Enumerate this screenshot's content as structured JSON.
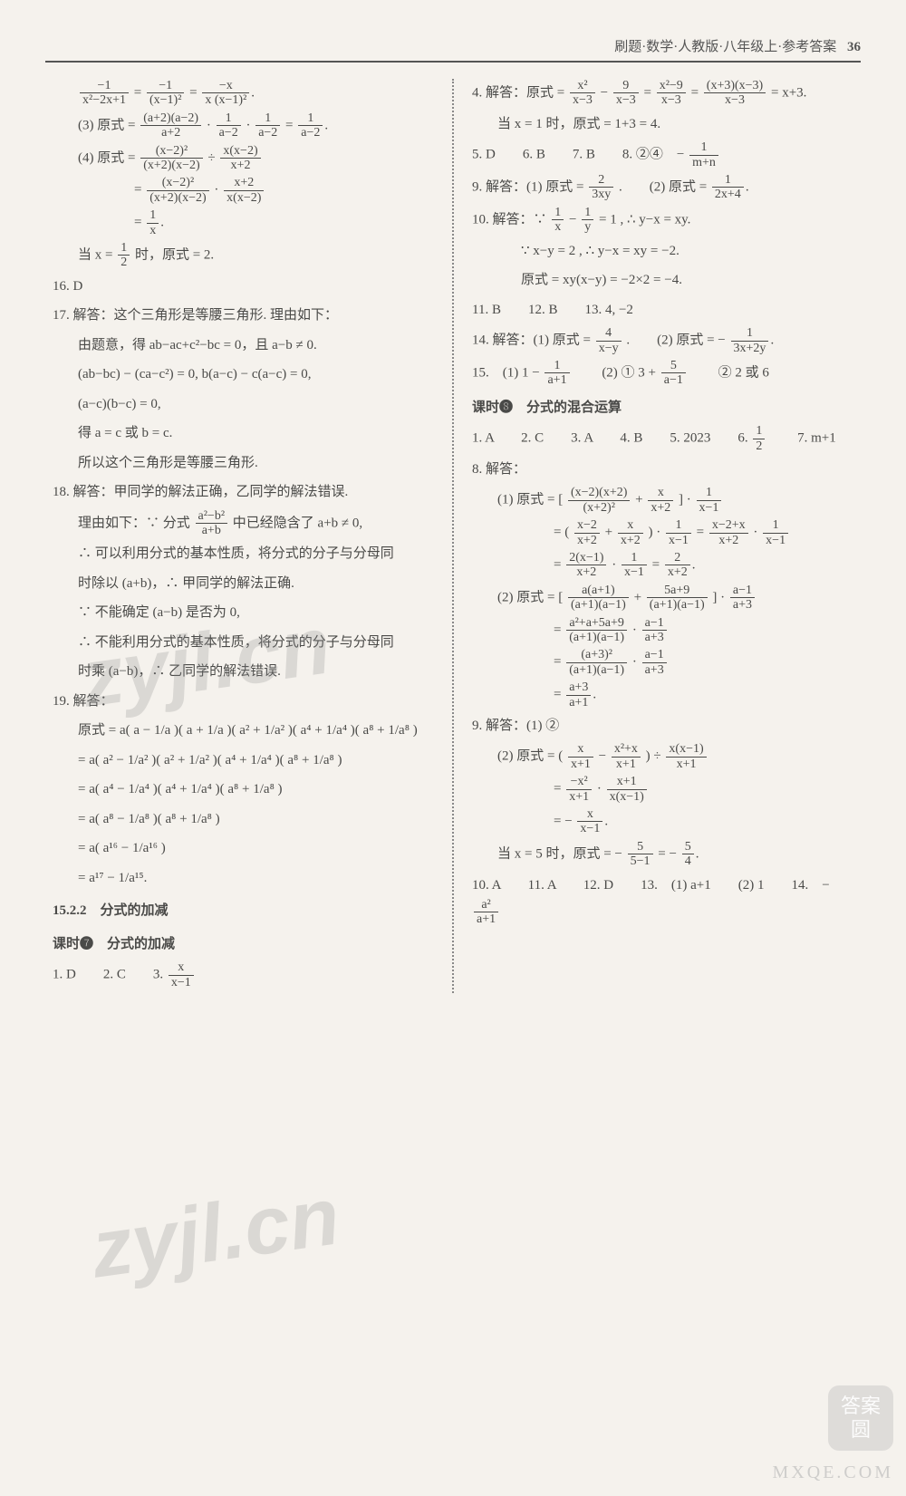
{
  "header": {
    "breadcrumb": "刷题·数学·人教版·八年级上·参考答案",
    "page_number": "36"
  },
  "watermarks": {
    "wm1": "zyjl.cn",
    "wm2": "zyjl.cn",
    "badge_top": "答案",
    "badge_bot": "圆",
    "site": "MXQE.COM"
  },
  "left": {
    "eq1_lhs_n": "−1",
    "eq1_lhs_d": "x²−2x+1",
    "eq1_m_n": "−1",
    "eq1_m_d": "(x−1)²",
    "eq1_r_n": "−x",
    "eq1_r_d": "x (x−1)²",
    "p3_label": "(3) 原式 =",
    "p3a_n": "(a+2)(a−2)",
    "p3a_d": "a+2",
    "p3b_n": "1",
    "p3b_d": "a−2",
    "p3c_n": "1",
    "p3c_d": "a−2",
    "p3r_n": "1",
    "p3r_d": "a−2",
    "p4_label": "(4) 原式 =",
    "p4a_n": "(x−2)²",
    "p4a_d": "(x+2)(x−2)",
    "p4b_n": "x(x−2)",
    "p4b_d": "x+2",
    "p4c_n": "(x−2)²",
    "p4c_d": "(x+2)(x−2)",
    "p4d_n": "x+2",
    "p4d_d": "x(x−2)",
    "p4e_n": "1",
    "p4e_d": "x",
    "p4_when1": "当 x = ",
    "p4_half_n": "1",
    "p4_half_d": "2",
    "p4_when2": " 时，原式 = 2.",
    "q16": "16.  D",
    "q17_head": "17.  解答：这个三角形是等腰三角形. 理由如下：",
    "q17_l1": "由题意，得 ab−ac+c²−bc = 0，且 a−b ≠ 0.",
    "q17_l2": "(ab−bc) − (ca−c²) = 0, b(a−c) − c(a−c) = 0,",
    "q17_l3": "(a−c)(b−c) = 0,",
    "q17_l4": "得 a = c 或 b = c.",
    "q17_l5": "所以这个三角形是等腰三角形.",
    "q18_head": "18.  解答：甲同学的解法正确，乙同学的解法错误.",
    "q18_l1a": "理由如下：∵ 分式",
    "q18_fr_n": "a²−b²",
    "q18_fr_d": "a+b",
    "q18_l1b": "中已经隐含了  a+b ≠ 0,",
    "q18_l2": "∴ 可以利用分式的基本性质，将分式的分子与分母同",
    "q18_l3": "时除以 (a+b)，∴ 甲同学的解法正确.",
    "q18_l4": "∵ 不能确定 (a−b) 是否为 0,",
    "q18_l5": "∴ 不能利用分式的基本性质，将分式的分子与分母同",
    "q18_l6": "时乘 (a−b)，∴ 乙同学的解法错误.",
    "q19_head": "19.  解答：",
    "q19_l1": "原式 = a( a − 1/a )( a + 1/a )( a² + 1/a² )( a⁴ + 1/a⁴ )( a⁸ + 1/a⁸ )",
    "q19_l2": "= a( a² − 1/a² )( a² + 1/a² )( a⁴ + 1/a⁴ )( a⁸ + 1/a⁸ )",
    "q19_l3": "= a( a⁴ − 1/a⁴ )( a⁴ + 1/a⁴ )( a⁸ + 1/a⁸ )",
    "q19_l4": "= a( a⁸ − 1/a⁸ )( a⁸ + 1/a⁸ )",
    "q19_l5": "= a( a¹⁶ − 1/a¹⁶ )",
    "q19_l6": "= a¹⁷ − 1/a¹⁵.",
    "sec_15_2_2": "15.2.2　分式的加减",
    "lesson7": "课时❼　分式的加减",
    "row7_12": "1.  D　　2.  C　　3.",
    "row7_3_n": "x",
    "row7_3_d": "x−1"
  },
  "right": {
    "q4_head": "4.  解答：原式 =",
    "q4a_n": "x²",
    "q4a_d": "x−3",
    "q4b_n": "9",
    "q4b_d": "x−3",
    "q4c_n": "x²−9",
    "q4c_d": "x−3",
    "q4d_n": "(x+3)(x−3)",
    "q4d_d": "x−3",
    "q4_tail": " = x+3.",
    "q4_when": "当 x = 1 时，原式 = 1+3 = 4.",
    "row5_8a": "5.  D　　6.  B　　7.  B　　8.  ②④　−",
    "row5_8_n": "1",
    "row5_8_d": "m+n",
    "q9_head": "9.  解答：(1) 原式 =",
    "q9a_n": "2",
    "q9a_d": "3xy",
    "q9_mid": ".　　(2) 原式 =",
    "q9b_n": "1",
    "q9b_d": "2x+4",
    "q10_head": "10.  解答：∵",
    "q10_a_n": "1",
    "q10_a_d": "x",
    "q10_b_n": "1",
    "q10_b_d": "y",
    "q10_tail": " = 1 , ∴ y−x = xy.",
    "q10_l2": "∵ x−y = 2 , ∴ y−x = xy = −2.",
    "q10_l3": "原式 = xy(x−y) = −2×2 = −4.",
    "row11_13": "11.  B　　12.  B　　13.  4, −2",
    "q14_head": "14.  解答：(1) 原式 =",
    "q14a_n": "4",
    "q14a_d": "x−y",
    "q14_mid": ".　　(2) 原式 = −",
    "q14b_n": "1",
    "q14b_d": "3x+2y",
    "q15_a": "15.　(1) 1 −",
    "q15_1_n": "1",
    "q15_1_d": "a+1",
    "q15_b": "　　(2) ① 3 +",
    "q15_2_n": "5",
    "q15_2_d": "a−1",
    "q15_c": "　　② 2 或 6",
    "lesson8": "课时❽　分式的混合运算",
    "row8_a": "1.  A　　2.  C　　3.  A　　4.  B　　5.  2023　　6.",
    "row8_6_n": "1",
    "row8_6_d": "2",
    "row8_b": "　　7.  m+1",
    "q8_head": "8.  解答：",
    "q8_1a": "(1) 原式 = [",
    "q8_1a_n": "(x−2)(x+2)",
    "q8_1a_d": "(x+2)²",
    "q8_1b_n": "x",
    "q8_1b_d": "x+2",
    "q8_1_tail1": " ] ·",
    "q8_1c_n": "1",
    "q8_1c_d": "x−1",
    "q8_1l2a": "= (",
    "q8_1l2_n1": "x−2",
    "q8_1l2_d1": "x+2",
    "q8_1l2_n2": "x",
    "q8_1l2_d2": "x+2",
    "q8_1l2b": " ) ·",
    "q8_1l2_n3": "1",
    "q8_1l2_d3": "x−1",
    "q8_1l2c": " =",
    "q8_1l2_n4": "x−2+x",
    "q8_1l2_d4": "x+2",
    "q8_1l2d": " ·",
    "q8_1l2_n5": "1",
    "q8_1l2_d5": "x−1",
    "q8_1l3a": "=",
    "q8_1l3_n1": "2(x−1)",
    "q8_1l3_d1": "x+2",
    "q8_1l3b": " ·",
    "q8_1l3_n2": "1",
    "q8_1l3_d2": "x−1",
    "q8_1l3c": " =",
    "q8_1l3_n3": "2",
    "q8_1l3_d3": "x+2",
    "q8_2a": "(2) 原式 = [",
    "q8_2a_n": "a(a+1)",
    "q8_2a_d": "(a+1)(a−1)",
    "q8_2b_n": "5a+9",
    "q8_2b_d": "(a+1)(a−1)",
    "q8_2_tail1": " ] ·",
    "q8_2c_n": "a−1",
    "q8_2c_d": "a+3",
    "q8_2l2a": "=",
    "q8_2l2_n1": "a²+a+5a+9",
    "q8_2l2_d1": "(a+1)(a−1)",
    "q8_2l2b": " ·",
    "q8_2l2_n2": "a−1",
    "q8_2l2_d2": "a+3",
    "q8_2l3a": "=",
    "q8_2l3_n1": "(a+3)²",
    "q8_2l3_d1": "(a+1)(a−1)",
    "q8_2l3b": " ·",
    "q8_2l3_n2": "a−1",
    "q8_2l3_d2": "a+3",
    "q8_2l4a": "=",
    "q8_2l4_n": "a+3",
    "q8_2l4_d": "a+1",
    "q9b_head": "9.  解答：(1) ②",
    "q9b_2a": "(2) 原式 = (",
    "q9b_2_n1": "x",
    "q9b_2_d1": "x+1",
    "q9b_2_n2": "x²+x",
    "q9b_2_d2": "x+1",
    "q9b_2b": " ) ÷",
    "q9b_2_n3": "x(x−1)",
    "q9b_2_d3": "x+1",
    "q9b_l2a": "=",
    "q9b_l2_n1": "−x²",
    "q9b_l2_d1": "x+1",
    "q9b_l2b": " ·",
    "q9b_l2_n2": "x+1",
    "q9b_l2_d2": "x(x−1)",
    "q9b_l3a": "= −",
    "q9b_l3_n": "x",
    "q9b_l3_d": "x−1",
    "q9b_when_a": "当 x = 5 时，原式 = −",
    "q9b_when_n1": "5",
    "q9b_when_d1": "5−1",
    "q9b_when_b": " = −",
    "q9b_when_n2": "5",
    "q9b_when_d2": "4",
    "row10_14a": "10.  A　　11.  A　　12.  D　　13.　(1) a+1　　(2) 1　　14.　−",
    "row10_14_n": "a²",
    "row10_14_d": "a+1"
  }
}
